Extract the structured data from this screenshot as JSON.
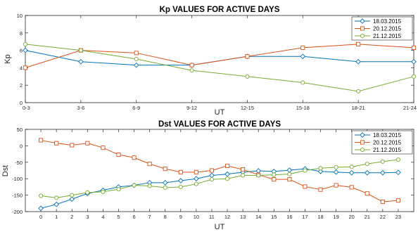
{
  "chart_data": [
    {
      "type": "line",
      "title": "Kp VALUES FOR ACTIVE DAYS",
      "xlabel": "UT",
      "ylabel": "Kp",
      "categories": [
        "0-3",
        "3-6",
        "6-9",
        "9-12",
        "12-15",
        "15-18",
        "18-21",
        "21-24"
      ],
      "yticks": [
        0,
        2,
        4,
        6,
        8,
        10
      ],
      "ylim": [
        0,
        10
      ],
      "grid": false,
      "legend": "top-right",
      "series": [
        {
          "name": "18.03.2015",
          "color": "#0072bd",
          "marker": "diamond",
          "values": [
            6.0,
            4.7,
            4.3,
            4.3,
            5.3,
            5.3,
            4.7,
            4.7
          ]
        },
        {
          "name": "20.12.2015",
          "color": "#d95319",
          "marker": "square",
          "values": [
            4.0,
            6.0,
            5.7,
            4.3,
            5.3,
            6.3,
            6.7,
            6.3
          ]
        },
        {
          "name": "21.12.2015",
          "color": "#77ac30",
          "marker": "circle",
          "values": [
            6.7,
            6.0,
            5.0,
            3.7,
            3.0,
            2.3,
            1.3,
            3.0
          ]
        }
      ]
    },
    {
      "type": "line",
      "title": "Dst VALUES FOR ACTIVE DAYS",
      "xlabel": "UT",
      "ylabel": "Dst",
      "x": [
        0,
        1,
        2,
        3,
        4,
        5,
        6,
        7,
        8,
        9,
        10,
        11,
        12,
        13,
        14,
        15,
        16,
        17,
        18,
        19,
        20,
        21,
        22,
        23
      ],
      "yticks": [
        -200,
        -150,
        -100,
        -50,
        0,
        50
      ],
      "ylim": [
        -200,
        50
      ],
      "xlim": [
        -1,
        24
      ],
      "grid": false,
      "legend": "top-right",
      "series": [
        {
          "name": "18.03.2015",
          "color": "#0072bd",
          "marker": "diamond",
          "values": [
            -190,
            -178,
            -162,
            -145,
            -135,
            -125,
            -120,
            -112,
            -112,
            -106,
            -100,
            -90,
            -86,
            -80,
            -76,
            -78,
            -74,
            -70,
            -78,
            -80,
            -82,
            -82,
            -82,
            -81
          ]
        },
        {
          "name": "20.12.2015",
          "color": "#d95319",
          "marker": "square",
          "values": [
            17,
            8,
            2,
            8,
            -6,
            -27,
            -36,
            -55,
            -70,
            -80,
            -80,
            -75,
            -61,
            -72,
            -88,
            -102,
            -102,
            -124,
            -133,
            -120,
            -126,
            -145,
            -170,
            -166
          ]
        },
        {
          "name": "21.12.2015",
          "color": "#77ac30",
          "marker": "circle",
          "values": [
            -152,
            -158,
            -150,
            -142,
            -140,
            -132,
            -120,
            -122,
            -127,
            -125,
            -116,
            -102,
            -100,
            -90,
            -90,
            -88,
            -86,
            -75,
            -68,
            -65,
            -64,
            -55,
            -48,
            -42
          ]
        }
      ]
    }
  ]
}
